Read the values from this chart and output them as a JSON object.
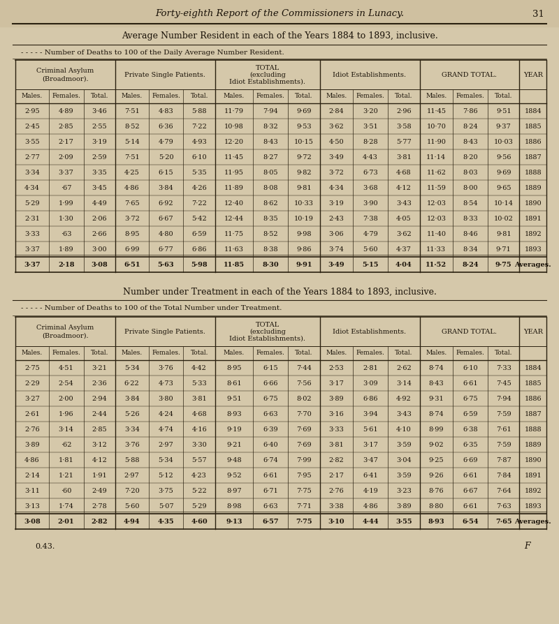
{
  "page_header": "Forty-eighth Report of the Commissioners in Lunacy.",
  "page_number": "31",
  "section1_title": "Average Number Resident in each of the Years 1884 to 1893, inclusive.",
  "section1_subtitle": "- - - - - Number of Deaths to 100 of the Daily Average Number Resident.",
  "section2_title": "Number under Treatment in each of the Years 1884 to 1893, inclusive.",
  "section2_subtitle": "- - - - - Number of Deaths to 100 of the Total Number under Treatment.",
  "col_groups": [
    "Criminal Asylum\n(Broadmoor).",
    "Private Single Patients.",
    "TOTAL\n(excluding\nIdiot Establishments).",
    "Idiot Establishments.",
    "GRAND TOTAL.",
    "YEAR"
  ],
  "sub_cols": [
    "Males.",
    "Females.",
    "Total."
  ],
  "table1_data": [
    [
      "2·95",
      "4·89",
      "3·46",
      "7·51",
      "4·83",
      "5·88",
      "11·79",
      "7·94",
      "9·69",
      "2·84",
      "3·20",
      "2·96",
      "11·45",
      "7·86",
      "9·51",
      "1884"
    ],
    [
      "2·45",
      "2·85",
      "2·55",
      "8·52",
      "6·36",
      "7·22",
      "10·98",
      "8·32",
      "9·53",
      "3·62",
      "3·51",
      "3·58",
      "10·70",
      "8·24",
      "9·37",
      "1885"
    ],
    [
      "3·55",
      "2·17",
      "3·19",
      "5·14",
      "4·79",
      "4·93",
      "12·20",
      "8·43",
      "10·15",
      "4·50",
      "8·28",
      "5·77",
      "11·90",
      "8·43",
      "10·03",
      "1886"
    ],
    [
      "2·77",
      "2·09",
      "2·59",
      "7·51",
      "5·20",
      "6·10",
      "11·45",
      "8·27",
      "9·72",
      "3·49",
      "4·43",
      "3·81",
      "11·14",
      "8·20",
      "9·56",
      "1887"
    ],
    [
      "3·34",
      "3·37",
      "3·35",
      "4·25",
      "6·15",
      "5·35",
      "11·95",
      "8·05",
      "9·82",
      "3·72",
      "6·73",
      "4·68",
      "11·62",
      "8·03",
      "9·69",
      "1888"
    ],
    [
      "4·34",
      "·67",
      "3·45",
      "4·86",
      "3·84",
      "4·26",
      "11·89",
      "8·08",
      "9·81",
      "4·34",
      "3·68",
      "4·12",
      "11·59",
      "8·00",
      "9·65",
      "1889"
    ],
    [
      "5·29",
      "1·99",
      "4·49",
      "7·65",
      "6·92",
      "7·22",
      "12·40",
      "8·62",
      "10·33",
      "3·19",
      "3·90",
      "3·43",
      "12·03",
      "8·54",
      "10·14",
      "1890"
    ],
    [
      "2·31",
      "1·30",
      "2·06",
      "3·72",
      "6·67",
      "5·42",
      "12·44",
      "8·35",
      "10·19",
      "2·43",
      "7·38",
      "4·05",
      "12·03",
      "8·33",
      "10·02",
      "1891"
    ],
    [
      "3·33",
      "·63",
      "2·66",
      "8·95",
      "4·80",
      "6·59",
      "11·75",
      "8·52",
      "9·98",
      "3·06",
      "4·79",
      "3·62",
      "11·40",
      "8·46",
      "9·81",
      "1892"
    ],
    [
      "3·37",
      "1·89",
      "3·00",
      "6·99",
      "6·77",
      "6·86",
      "11·63",
      "8·38",
      "9·86",
      "3·74",
      "5·60",
      "4·37",
      "11·33",
      "8·34",
      "9·71",
      "1893"
    ],
    [
      "3·37",
      "2·18",
      "3·08",
      "6·51",
      "5·63",
      "5·98",
      "11·85",
      "8·30",
      "9·91",
      "3·49",
      "5·15",
      "4·04",
      "11·52",
      "8·24",
      "9·75",
      "Averages."
    ]
  ],
  "table2_data": [
    [
      "2·75",
      "4·51",
      "3·21",
      "5·34",
      "3·76",
      "4·42",
      "8·95",
      "6·15",
      "7·44",
      "2·53",
      "2·81",
      "2·62",
      "8·74",
      "6·10",
      "7·33",
      "1884"
    ],
    [
      "2·29",
      "2·54",
      "2·36",
      "6·22",
      "4·73",
      "5·33",
      "8·61",
      "6·66",
      "7·56",
      "3·17",
      "3·09",
      "3·14",
      "8·43",
      "6·61",
      "7·45",
      "1885"
    ],
    [
      "3·27",
      "2·00",
      "2·94",
      "3·84",
      "3·80",
      "3·81",
      "9·51",
      "6·75",
      "8·02",
      "3·89",
      "6·86",
      "4·92",
      "9·31",
      "6·75",
      "7·94",
      "1886"
    ],
    [
      "2·61",
      "1·96",
      "2·44",
      "5·26",
      "4·24",
      "4·68",
      "8·93",
      "6·63",
      "7·70",
      "3·16",
      "3·94",
      "3·43",
      "8·74",
      "6·59",
      "7·59",
      "1887"
    ],
    [
      "2·76",
      "3·14",
      "2·85",
      "3·34",
      "4·74",
      "4·16",
      "9·19",
      "6·39",
      "7·69",
      "3·33",
      "5·61",
      "4·10",
      "8·99",
      "6·38",
      "7·61",
      "1888"
    ],
    [
      "3·89",
      "·62",
      "3·12",
      "3·76",
      "2·97",
      "3·30",
      "9·21",
      "6·40",
      "7·69",
      "3·81",
      "3·17",
      "3·59",
      "9·02",
      "6·35",
      "7·59",
      "1889"
    ],
    [
      "4·86",
      "1·81",
      "4·12",
      "5·88",
      "5·34",
      "5·57",
      "9·48",
      "6·74",
      "7·99",
      "2·82",
      "3·47",
      "3·04",
      "9·25",
      "6·69",
      "7·87",
      "1890"
    ],
    [
      "2·14",
      "1·21",
      "1·91",
      "2·97",
      "5·12",
      "4·23",
      "9·52",
      "6·61",
      "7·95",
      "2·17",
      "6·41",
      "3·59",
      "9·26",
      "6·61",
      "7·84",
      "1891"
    ],
    [
      "3·11",
      "·60",
      "2·49",
      "7·20",
      "3·75",
      "5·22",
      "8·97",
      "6·71",
      "7·75",
      "2·76",
      "4·19",
      "3·23",
      "8·76",
      "6·67",
      "7·64",
      "1892"
    ],
    [
      "3·13",
      "1·74",
      "2·78",
      "5·60",
      "5·07",
      "5·29",
      "8·98",
      "6·63",
      "7·71",
      "3·38",
      "4·86",
      "3·89",
      "8·80",
      "6·61",
      "7·63",
      "1893"
    ],
    [
      "3·08",
      "2·01",
      "2·82",
      "4·94",
      "4·35",
      "4·60",
      "9·13",
      "6·57",
      "7·75",
      "3·10",
      "4·44",
      "3·55",
      "8·93",
      "6·54",
      "7·65",
      "Averages."
    ]
  ],
  "footer": "0.43.",
  "footer_right": "F",
  "bg_color": "#cfc0a0",
  "page_bg": "#d5c8aa",
  "text_color": "#1a1208",
  "line_color": "#2a2010"
}
